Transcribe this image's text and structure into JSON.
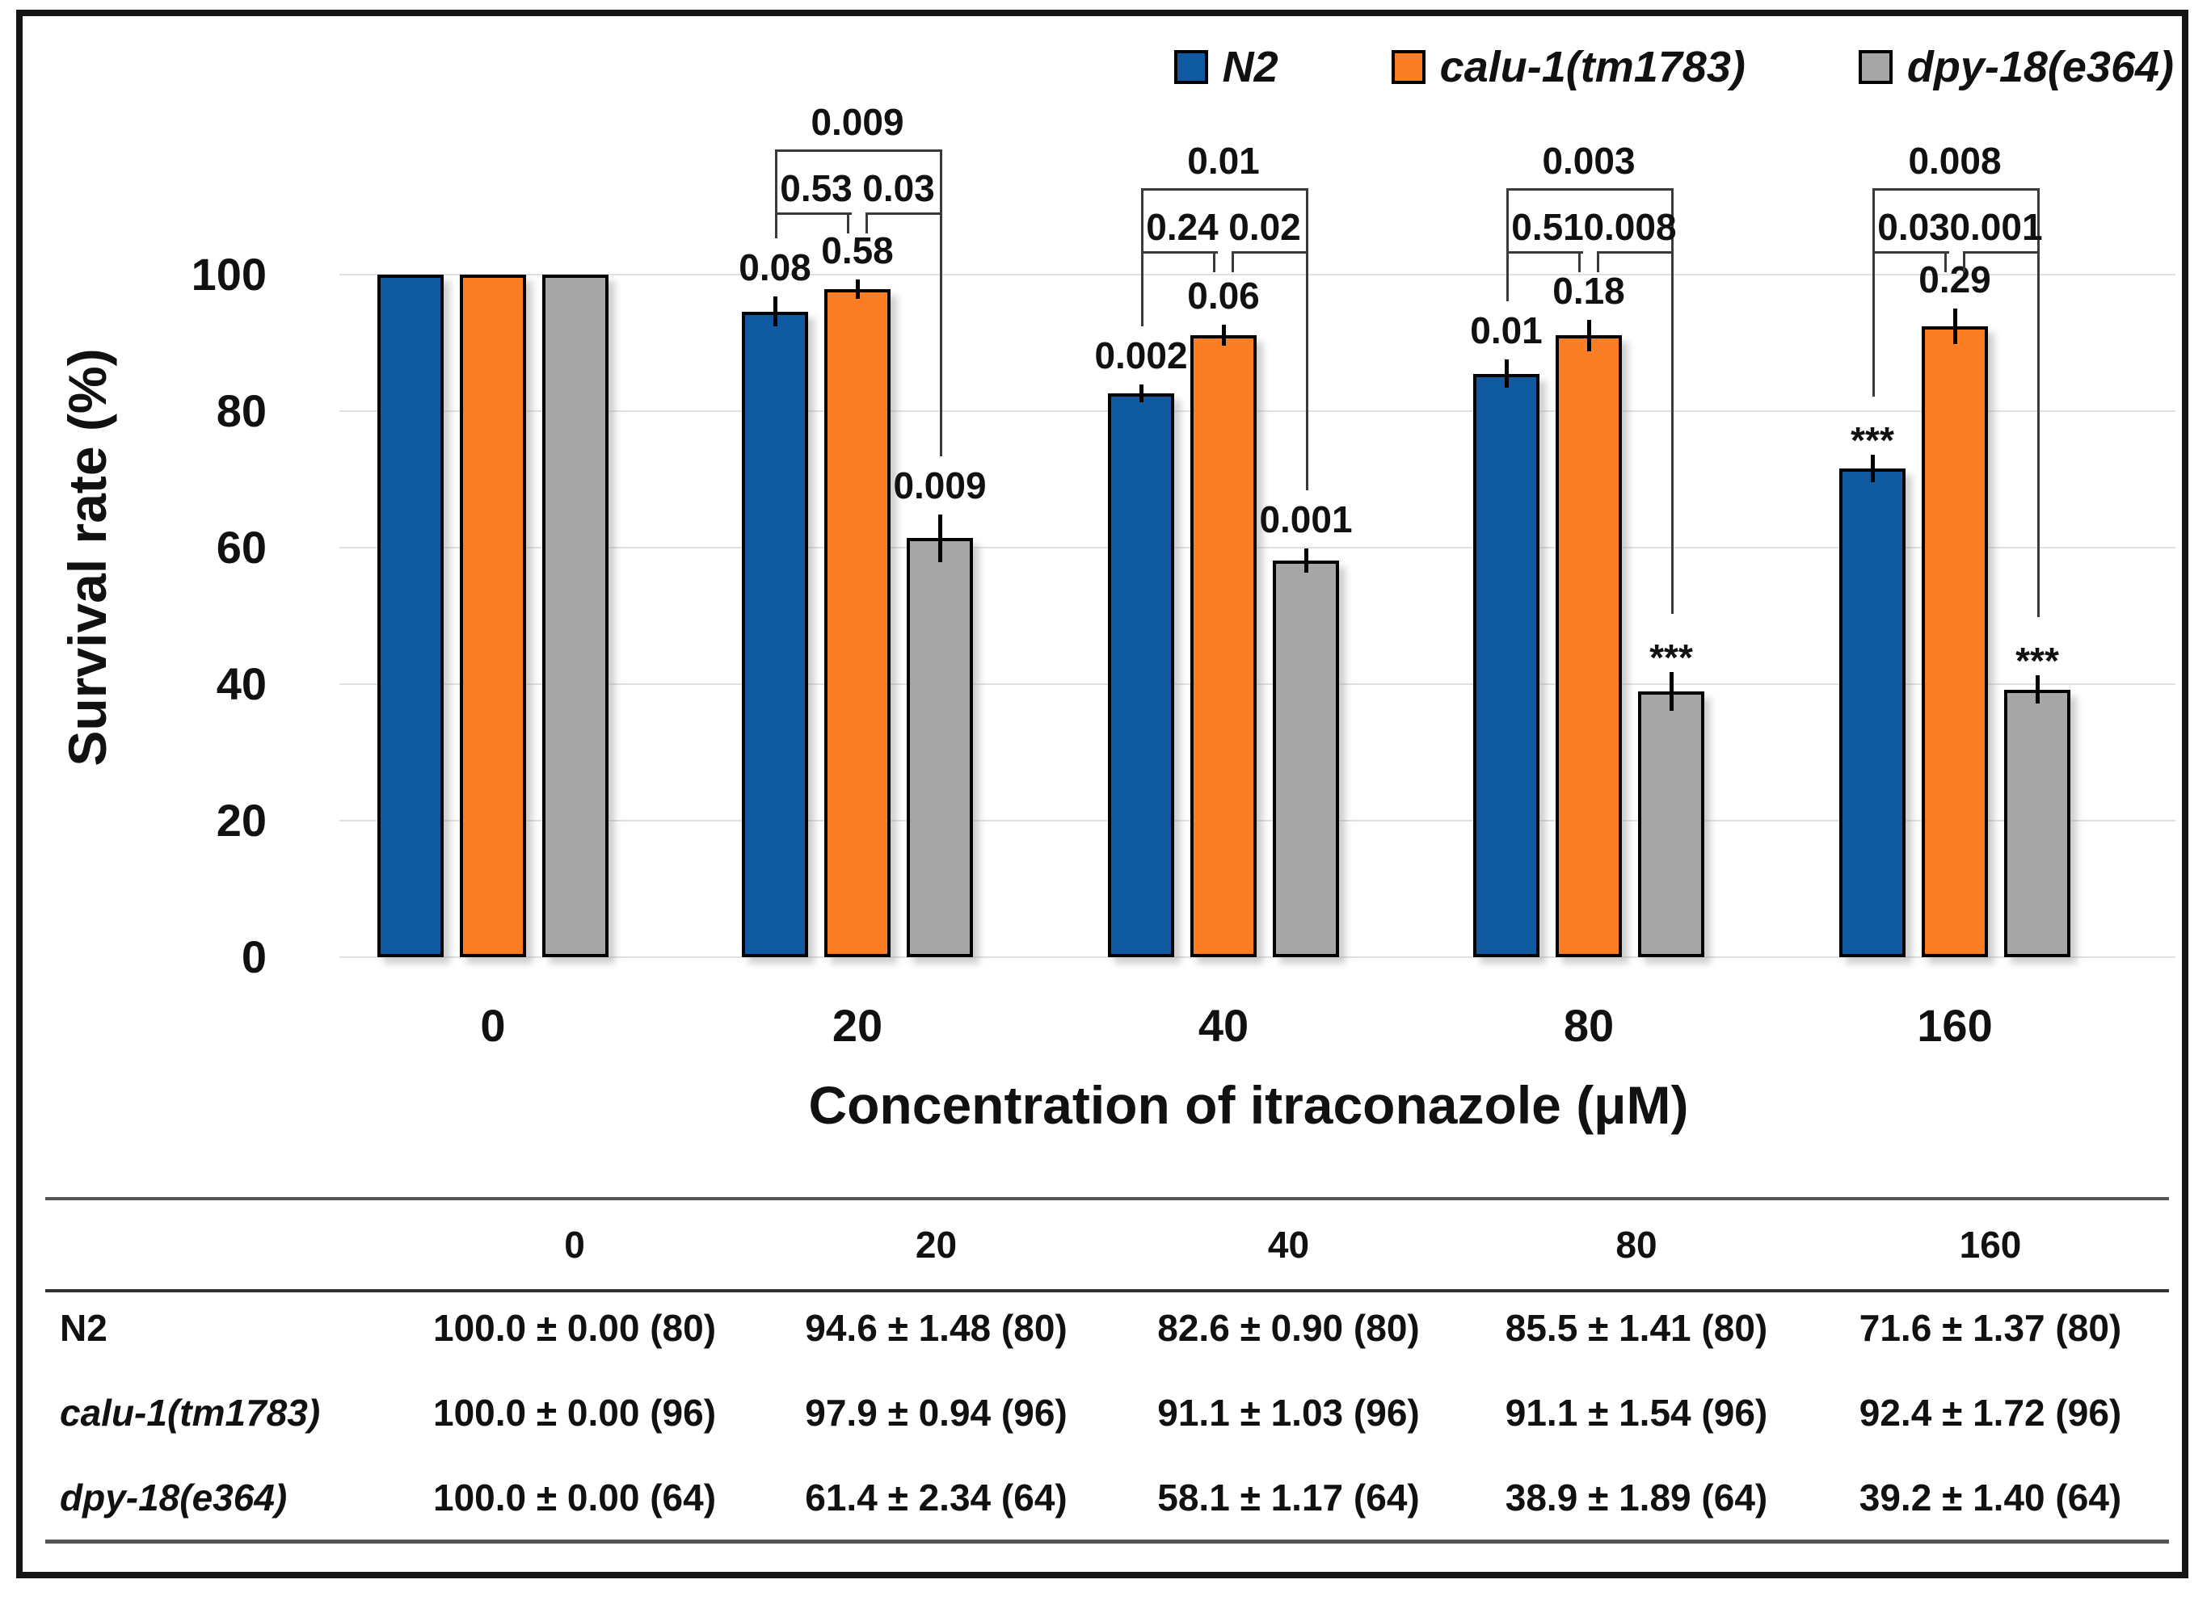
{
  "legend": {
    "items": [
      {
        "label": "N2",
        "color": "#0F5AA0"
      },
      {
        "label": "calu-1(tm1783)",
        "color": "#FB7D24"
      },
      {
        "label": "dpy-18(e364)",
        "color": "#A6A6A6"
      }
    ]
  },
  "chart_data": {
    "type": "bar",
    "xlabel": "Concentration of itraconazole (μM)",
    "ylabel": "Survival rate (%)",
    "categories": [
      "0",
      "20",
      "40",
      "80",
      "160"
    ],
    "ylim": [
      0,
      100
    ],
    "yticks": [
      0,
      20,
      40,
      60,
      80,
      100
    ],
    "grid": "horizontal",
    "legend_position": "top-right",
    "series": [
      {
        "name": "N2",
        "color": "#0F5AA0",
        "values": [
          100.0,
          94.6,
          82.6,
          85.5,
          71.6
        ],
        "errors": [
          0.0,
          1.48,
          0.9,
          1.41,
          1.37
        ],
        "bar_labels": [
          "",
          "0.08",
          "0.002",
          "0.01",
          "***"
        ]
      },
      {
        "name": "calu-1(tm1783)",
        "color": "#FB7D24",
        "values": [
          100.0,
          97.9,
          91.1,
          91.1,
          92.4
        ],
        "errors": [
          0.0,
          0.94,
          1.03,
          1.54,
          1.72
        ],
        "bar_labels": [
          "",
          "0.58",
          "0.06",
          "0.18",
          "0.29"
        ]
      },
      {
        "name": "dpy-18(e364)",
        "color": "#A6A6A6",
        "values": [
          100.0,
          61.4,
          58.1,
          38.9,
          39.2
        ],
        "errors": [
          0.0,
          2.34,
          1.17,
          1.89,
          1.4
        ],
        "bar_labels": [
          "",
          "0.009",
          "0.001",
          "***",
          "***"
        ]
      }
    ],
    "significance_brackets": [
      {
        "group": "20",
        "outer": "0.009",
        "left": "0.53",
        "right": "0.03"
      },
      {
        "group": "40",
        "outer": "0.01",
        "left": "0.24",
        "right": "0.02"
      },
      {
        "group": "80",
        "outer": "0.003",
        "left": "0.51",
        "right": "0.008"
      },
      {
        "group": "160",
        "outer": "0.008",
        "left": "0.03",
        "right": "0.001"
      }
    ]
  },
  "table": {
    "col_headers": [
      "",
      "0",
      "20",
      "40",
      "80",
      "160"
    ],
    "rows": [
      {
        "label": "N2",
        "italic": false,
        "cells": [
          "100.0 ± 0.00 (80)",
          "94.6 ± 1.48 (80)",
          "82.6 ± 0.90 (80)",
          "85.5 ± 1.41 (80)",
          "71.6 ± 1.37 (80)"
        ]
      },
      {
        "label": "calu-1(tm1783)",
        "italic": true,
        "cells": [
          "100.0 ± 0.00 (96)",
          "97.9 ± 0.94 (96)",
          "91.1 ± 1.03 (96)",
          "91.1 ± 1.54 (96)",
          "92.4 ± 1.72 (96)"
        ]
      },
      {
        "label": "dpy-18(e364)",
        "italic": true,
        "cells": [
          "100.0 ± 0.00 (64)",
          "61.4 ± 2.34 (64)",
          "58.1 ± 1.17 (64)",
          "38.9 ± 1.89 (64)",
          "39.2 ± 1.40 (64)"
        ]
      }
    ]
  }
}
